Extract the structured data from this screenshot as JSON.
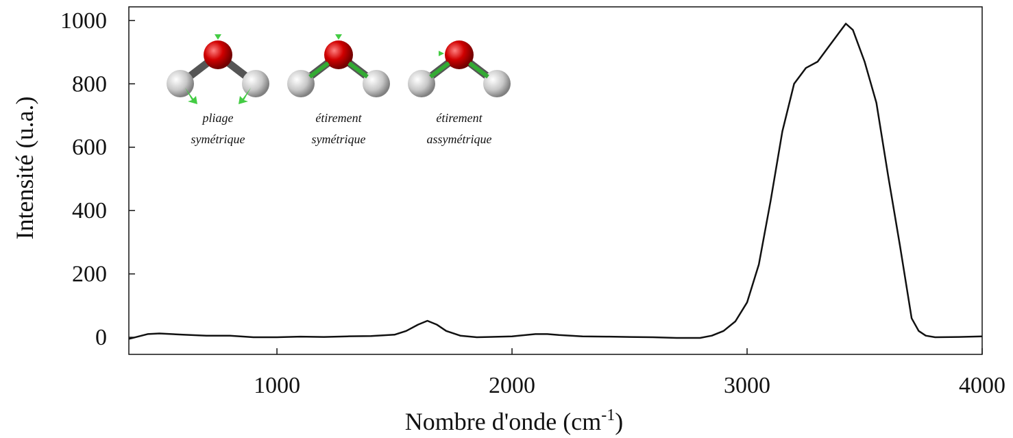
{
  "chart_data": {
    "type": "line",
    "ylabel": "Intensité (u.a.)",
    "xlabel": [
      "Nombre d'onde (cm",
      "-1",
      ")"
    ],
    "annotations": [
      {
        "lines": [
          "pliage",
          "symétrique"
        ]
      },
      {
        "lines": [
          "étirement",
          "symétrique"
        ]
      },
      {
        "lines": [
          "étirement",
          "assymétrique"
        ]
      }
    ],
    "xlim": [
      370,
      4000
    ],
    "ylim": [
      -54,
      1043
    ],
    "xticks": [
      1000,
      2000,
      3000,
      4000
    ],
    "yticks": [
      0,
      200,
      400,
      600,
      800,
      1000
    ],
    "grid": false,
    "x": [
      370,
      450,
      500,
      600,
      700,
      800,
      900,
      1000,
      1100,
      1200,
      1300,
      1400,
      1500,
      1550,
      1600,
      1640,
      1680,
      1720,
      1780,
      1850,
      1900,
      2000,
      2100,
      2150,
      2200,
      2300,
      2400,
      2500,
      2600,
      2700,
      2800,
      2850,
      2900,
      2950,
      3000,
      3050,
      3100,
      3150,
      3200,
      3250,
      3300,
      3350,
      3400,
      3420,
      3450,
      3500,
      3550,
      3600,
      3650,
      3700,
      3730,
      3760,
      3800,
      3900,
      4000
    ],
    "series": [
      {
        "color": "#111111",
        "values": [
          -5,
          10,
          12,
          8,
          5,
          5,
          0,
          0,
          2,
          1,
          3,
          4,
          8,
          20,
          40,
          52,
          40,
          20,
          5,
          0,
          1,
          3,
          10,
          10,
          7,
          3,
          2,
          1,
          0,
          -2,
          -2,
          5,
          20,
          50,
          110,
          230,
          430,
          650,
          800,
          850,
          870,
          920,
          970,
          990,
          970,
          870,
          740,
          510,
          290,
          60,
          20,
          5,
          0,
          1,
          3
        ]
      }
    ]
  }
}
